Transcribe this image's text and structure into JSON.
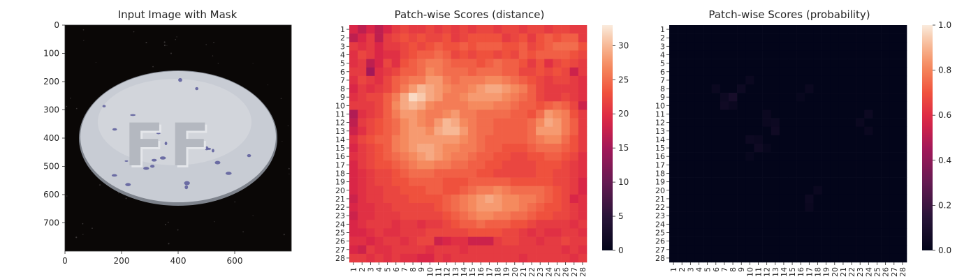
{
  "chart_data": [
    {
      "type": "image",
      "title": "Input Image with Mask",
      "x_ticks": [
        0,
        200,
        400,
        600
      ],
      "y_ticks": [
        0,
        100,
        200,
        300,
        400,
        500,
        600,
        700
      ],
      "xlim": [
        0,
        800
      ],
      "ylim": [
        800,
        0
      ],
      "embossed_text": "FF",
      "colors": {
        "background": "#0a0706",
        "pill": "#c8ccd4",
        "speckle": "#5a5a9a"
      }
    },
    {
      "type": "heatmap",
      "title": "Patch-wise Scores (distance)",
      "x_tick_labels": [
        "1",
        "2",
        "3",
        "4",
        "5",
        "6",
        "7",
        "8",
        "9",
        "10",
        "11",
        "12",
        "13",
        "14",
        "15",
        "16",
        "17",
        "18",
        "19",
        "20",
        "21",
        "22",
        "23",
        "24",
        "25",
        "26",
        "27",
        "28"
      ],
      "y_tick_labels": [
        "1",
        "2",
        "3",
        "4",
        "5",
        "6",
        "7",
        "8",
        "9",
        "10",
        "11",
        "12",
        "13",
        "14",
        "15",
        "16",
        "17",
        "18",
        "19",
        "20",
        "21",
        "22",
        "23",
        "24",
        "25",
        "26",
        "27",
        "28"
      ],
      "colorbar_ticks": [
        0,
        5,
        10,
        15,
        20,
        25,
        30
      ],
      "vmin": 0,
      "vmax": 33,
      "colormap": "rocket",
      "values": [
        [
          19,
          17,
          19,
          17,
          19,
          21,
          22,
          21,
          21,
          22,
          21,
          22,
          21,
          22,
          21,
          22,
          22,
          21,
          22,
          22,
          21,
          22,
          22,
          21,
          22,
          22,
          21,
          21
        ],
        [
          17,
          19,
          21,
          17,
          21,
          22,
          23,
          22,
          23,
          22,
          22,
          23,
          21,
          22,
          23,
          23,
          23,
          23,
          21,
          22,
          23,
          21,
          23,
          24,
          23,
          24,
          24,
          21
        ],
        [
          21,
          20,
          21,
          19,
          21,
          21,
          22,
          23,
          22,
          23,
          24,
          23,
          23,
          24,
          23,
          24,
          24,
          24,
          23,
          23,
          24,
          22,
          23,
          24,
          25,
          25,
          25,
          23
        ],
        [
          20,
          22,
          21,
          19,
          20,
          20,
          22,
          23,
          24,
          24,
          25,
          24,
          22,
          23,
          22,
          23,
          23,
          22,
          23,
          22,
          24,
          23,
          24,
          24,
          24,
          24,
          23,
          22
        ],
        [
          20,
          21,
          17,
          19,
          22,
          20,
          23,
          24,
          25,
          26,
          26,
          25,
          24,
          24,
          24,
          23,
          24,
          25,
          24,
          24,
          23,
          21,
          23,
          20,
          22,
          23,
          22,
          21
        ],
        [
          21,
          21,
          15,
          20,
          21,
          22,
          24,
          24,
          25,
          27,
          26,
          25,
          25,
          25,
          24,
          25,
          25,
          25,
          24,
          24,
          22,
          22,
          23,
          22,
          23,
          22,
          18,
          21
        ],
        [
          20,
          22,
          21,
          20,
          22,
          24,
          25,
          26,
          26,
          28,
          28,
          26,
          25,
          26,
          26,
          26,
          27,
          27,
          26,
          25,
          24,
          23,
          22,
          21,
          22,
          22,
          21,
          20
        ],
        [
          19,
          21,
          20,
          21,
          22,
          24,
          26,
          28,
          30,
          29,
          28,
          27,
          26,
          26,
          27,
          28,
          29,
          29,
          28,
          27,
          26,
          24,
          22,
          21,
          21,
          21,
          21,
          20
        ],
        [
          20,
          21,
          22,
          22,
          24,
          26,
          29,
          32,
          31,
          29,
          28,
          26,
          26,
          27,
          28,
          28,
          28,
          28,
          27,
          26,
          25,
          24,
          22,
          21,
          21,
          22,
          21,
          20
        ],
        [
          21,
          21,
          21,
          22,
          24,
          27,
          29,
          30,
          29,
          27,
          26,
          26,
          26,
          26,
          27,
          27,
          27,
          26,
          26,
          25,
          24,
          24,
          23,
          24,
          25,
          24,
          22,
          18
        ],
        [
          16,
          20,
          21,
          22,
          24,
          26,
          28,
          28,
          27,
          26,
          26,
          27,
          28,
          26,
          26,
          25,
          25,
          25,
          25,
          24,
          24,
          23,
          25,
          28,
          27,
          26,
          23,
          21
        ],
        [
          17,
          21,
          22,
          23,
          24,
          25,
          27,
          28,
          27,
          26,
          28,
          30,
          29,
          27,
          26,
          25,
          25,
          24,
          24,
          24,
          24,
          25,
          27,
          29,
          28,
          26,
          24,
          21
        ],
        [
          18,
          20,
          22,
          23,
          24,
          25,
          27,
          28,
          28,
          27,
          29,
          30,
          30,
          28,
          26,
          25,
          25,
          24,
          24,
          24,
          24,
          25,
          28,
          28,
          28,
          26,
          24,
          21
        ],
        [
          20,
          22,
          23,
          24,
          24,
          26,
          27,
          28,
          28,
          28,
          28,
          28,
          28,
          27,
          26,
          25,
          24,
          24,
          24,
          24,
          24,
          25,
          26,
          27,
          27,
          25,
          23,
          21
        ],
        [
          19,
          21,
          22,
          23,
          24,
          26,
          27,
          28,
          29,
          29,
          28,
          27,
          27,
          26,
          26,
          25,
          24,
          24,
          23,
          23,
          23,
          24,
          25,
          25,
          25,
          24,
          23,
          21
        ],
        [
          20,
          21,
          22,
          23,
          24,
          25,
          26,
          27,
          28,
          29,
          28,
          27,
          26,
          26,
          25,
          24,
          24,
          23,
          23,
          22,
          22,
          23,
          23,
          24,
          24,
          23,
          22,
          20
        ],
        [
          19,
          21,
          22,
          23,
          23,
          24,
          25,
          26,
          27,
          27,
          26,
          26,
          25,
          25,
          24,
          24,
          23,
          23,
          22,
          22,
          22,
          22,
          23,
          23,
          23,
          22,
          21,
          20
        ],
        [
          19,
          20,
          21,
          22,
          22,
          23,
          24,
          25,
          25,
          25,
          24,
          24,
          24,
          24,
          24,
          23,
          23,
          22,
          22,
          22,
          22,
          22,
          23,
          23,
          22,
          22,
          21,
          20
        ],
        [
          19,
          20,
          21,
          22,
          22,
          23,
          23,
          24,
          24,
          24,
          24,
          23,
          23,
          23,
          24,
          24,
          24,
          24,
          24,
          23,
          23,
          23,
          23,
          23,
          22,
          22,
          21,
          19
        ],
        [
          19,
          20,
          21,
          21,
          22,
          22,
          23,
          23,
          23,
          24,
          24,
          23,
          23,
          24,
          25,
          26,
          26,
          27,
          26,
          25,
          25,
          25,
          25,
          24,
          23,
          22,
          21,
          19
        ],
        [
          18,
          20,
          21,
          21,
          22,
          22,
          22,
          23,
          23,
          23,
          23,
          24,
          25,
          26,
          27,
          28,
          29,
          28,
          27,
          27,
          26,
          26,
          25,
          24,
          23,
          22,
          19,
          20
        ],
        [
          19,
          20,
          20,
          21,
          21,
          22,
          22,
          22,
          22,
          22,
          23,
          24,
          25,
          26,
          27,
          28,
          28,
          28,
          27,
          27,
          26,
          25,
          24,
          23,
          23,
          22,
          21,
          20
        ],
        [
          18,
          20,
          20,
          21,
          21,
          21,
          22,
          22,
          22,
          22,
          22,
          23,
          24,
          25,
          26,
          27,
          27,
          26,
          26,
          25,
          25,
          24,
          23,
          23,
          22,
          22,
          21,
          20
        ],
        [
          19,
          20,
          21,
          21,
          21,
          20,
          21,
          21,
          20,
          21,
          21,
          22,
          23,
          24,
          24,
          25,
          24,
          24,
          24,
          23,
          23,
          22,
          21,
          21,
          21,
          21,
          20,
          21
        ],
        [
          19,
          19,
          20,
          21,
          20,
          20,
          21,
          21,
          21,
          22,
          22,
          22,
          22,
          22,
          23,
          23,
          23,
          23,
          22,
          22,
          21,
          20,
          21,
          20,
          20,
          21,
          21,
          20
        ],
        [
          20,
          20,
          19,
          20,
          21,
          21,
          20,
          21,
          22,
          22,
          18,
          19,
          20,
          20,
          18,
          18,
          18,
          21,
          22,
          22,
          21,
          21,
          20,
          21,
          21,
          22,
          21,
          21
        ],
        [
          19,
          18,
          21,
          20,
          20,
          21,
          21,
          21,
          21,
          20,
          21,
          21,
          21,
          20,
          21,
          21,
          21,
          21,
          21,
          21,
          21,
          21,
          21,
          21,
          21,
          20,
          21,
          20
        ],
        [
          21,
          21,
          20,
          21,
          20,
          21,
          20,
          20,
          19,
          19,
          21,
          20,
          21,
          21,
          21,
          21,
          21,
          21,
          21,
          21,
          20,
          21,
          21,
          21,
          21,
          21,
          20,
          21
        ]
      ]
    },
    {
      "type": "heatmap",
      "title": "Patch-wise Scores (probability)",
      "x_tick_labels": [
        "1",
        "2",
        "3",
        "4",
        "5",
        "6",
        "7",
        "8",
        "9",
        "10",
        "11",
        "12",
        "13",
        "14",
        "15",
        "16",
        "17",
        "18",
        "19",
        "20",
        "21",
        "22",
        "23",
        "24",
        "25",
        "26",
        "27",
        "28"
      ],
      "y_tick_labels": [
        "1",
        "2",
        "3",
        "4",
        "5",
        "6",
        "7",
        "8",
        "9",
        "10",
        "11",
        "12",
        "13",
        "14",
        "15",
        "16",
        "17",
        "18",
        "19",
        "20",
        "21",
        "22",
        "23",
        "24",
        "25",
        "26",
        "27",
        "28"
      ],
      "colorbar_ticks": [
        "0.0",
        "0.2",
        "0.4",
        "0.6",
        "0.8",
        "1.0"
      ],
      "vmin": 0,
      "vmax": 1,
      "colormap": "rocket",
      "hot_cells": [
        {
          "row": 7,
          "col": 10,
          "value": 0.03
        },
        {
          "row": 8,
          "col": 6,
          "value": 0.03
        },
        {
          "row": 8,
          "col": 9,
          "value": 0.04
        },
        {
          "row": 8,
          "col": 17,
          "value": 0.03
        },
        {
          "row": 9,
          "col": 7,
          "value": 0.04
        },
        {
          "row": 9,
          "col": 8,
          "value": 0.08
        },
        {
          "row": 9,
          "col": 16,
          "value": 0.02
        },
        {
          "row": 10,
          "col": 7,
          "value": 0.05
        },
        {
          "row": 10,
          "col": 8,
          "value": 0.03
        },
        {
          "row": 11,
          "col": 12,
          "value": 0.03
        },
        {
          "row": 11,
          "col": 24,
          "value": 0.04
        },
        {
          "row": 12,
          "col": 12,
          "value": 0.03
        },
        {
          "row": 12,
          "col": 13,
          "value": 0.04
        },
        {
          "row": 12,
          "col": 23,
          "value": 0.03
        },
        {
          "row": 13,
          "col": 13,
          "value": 0.05
        },
        {
          "row": 13,
          "col": 24,
          "value": 0.03
        },
        {
          "row": 14,
          "col": 10,
          "value": 0.04
        },
        {
          "row": 14,
          "col": 11,
          "value": 0.03
        },
        {
          "row": 15,
          "col": 11,
          "value": 0.05
        },
        {
          "row": 15,
          "col": 12,
          "value": 0.02
        },
        {
          "row": 16,
          "col": 10,
          "value": 0.02
        },
        {
          "row": 20,
          "col": 18,
          "value": 0.03
        },
        {
          "row": 21,
          "col": 17,
          "value": 0.04
        },
        {
          "row": 22,
          "col": 17,
          "value": 0.03
        }
      ]
    }
  ]
}
